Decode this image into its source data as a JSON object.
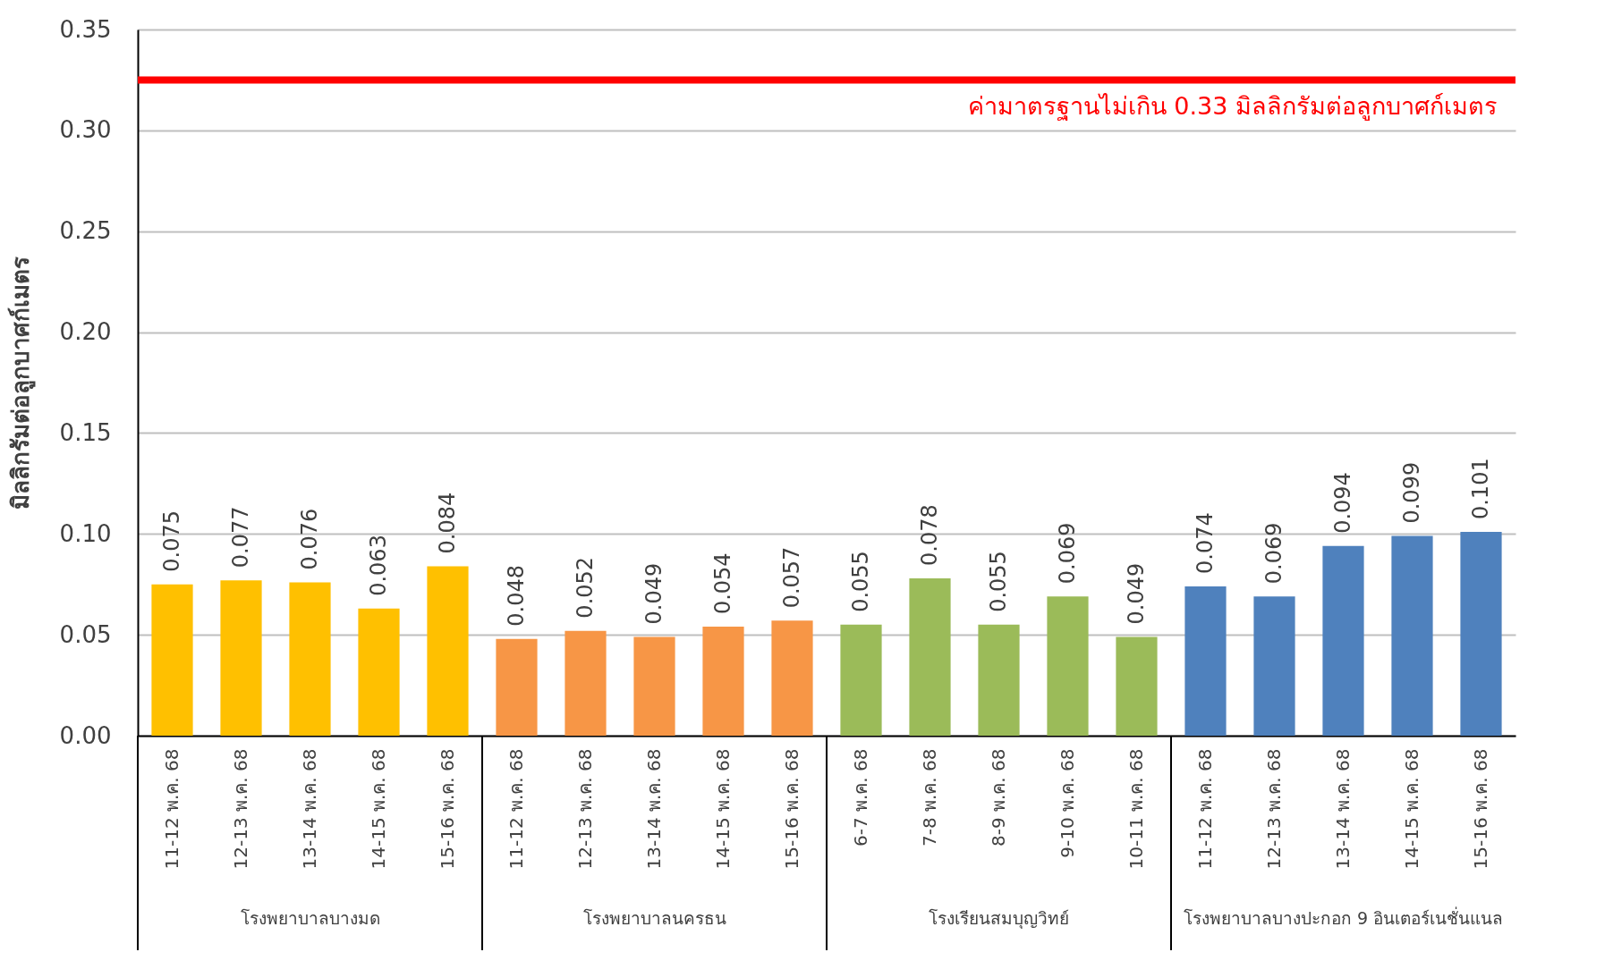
{
  "chart_data": {
    "type": "bar",
    "ylabel": "มิลลิกรัมต่อลูกบาศก์เมตร",
    "categories": [
      "11-12 พ.ค. 68",
      "12-13 พ.ค. 68",
      "13-14 พ.ค. 68",
      "14-15 พ.ค. 68",
      "15-16 พ.ค. 68",
      "11-12 พ.ค. 68",
      "12-13 พ.ค. 68",
      "13-14 พ.ค. 68",
      "14-15 พ.ค. 68",
      "15-16 พ.ค. 68",
      "6-7 พ.ค. 68",
      "7-8 พ.ค. 68",
      "8-9 พ.ค. 68",
      "9-10 พ.ค. 68",
      "10-11 พ.ค. 68",
      "11-12 พ.ค. 68",
      "12-13 พ.ค. 68",
      "13-14 พ.ค. 68",
      "14-15 พ.ค. 68",
      "15-16 พ.ค. 68"
    ],
    "values": [
      0.075,
      0.077,
      0.076,
      0.063,
      0.084,
      0.048,
      0.052,
      0.049,
      0.054,
      0.057,
      0.055,
      0.078,
      0.055,
      0.069,
      0.049,
      0.074,
      0.069,
      0.094,
      0.099,
      0.101
    ],
    "colors": [
      "#ffc000",
      "#ffc000",
      "#ffc000",
      "#ffc000",
      "#ffc000",
      "#f79646",
      "#f79646",
      "#f79646",
      "#f79646",
      "#f79646",
      "#9bbb59",
      "#9bbb59",
      "#9bbb59",
      "#9bbb59",
      "#9bbb59",
      "#4f81bd",
      "#4f81bd",
      "#4f81bd",
      "#4f81bd",
      "#4f81bd"
    ],
    "ylim": [
      0,
      0.35
    ],
    "yticks": [
      {
        "value": 0,
        "label": "0.00"
      },
      {
        "value": 0.05,
        "label": "0.05"
      },
      {
        "value": 0.1,
        "label": "0.10"
      },
      {
        "value": 0.15,
        "label": "0.15"
      },
      {
        "value": 0.2,
        "label": "0.20"
      },
      {
        "value": 0.25,
        "label": "0.25"
      },
      {
        "value": 0.3,
        "label": "0.30"
      },
      {
        "value": 0.35,
        "label": "0.35"
      }
    ],
    "grid": "y",
    "data_labels": true,
    "ref_lines": [
      {
        "axis": "y",
        "value": 0.325,
        "label": "ค่ามาตรฐานไม่เกิน 0.33 มิลลิกรัมต่อลูกบาศก์เมตร",
        "color": "#ff0000"
      }
    ],
    "annotations": [
      "โรงพยาบาลบางมด",
      "โรงพยาบาลนครธน",
      "โรงเรียนสมบุญวิทย์",
      "โรงพยาบาลบางปะกอก 9 อินเตอร์เนชั่นแนล"
    ]
  }
}
